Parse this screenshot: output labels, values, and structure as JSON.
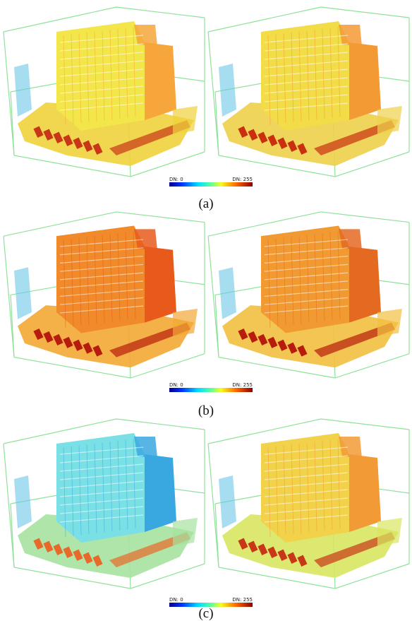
{
  "panels": [
    {
      "label": "(a)",
      "colorbar": {
        "min_label": "DN: 0",
        "max_label": "DN: 255"
      }
    },
    {
      "label": "(b)",
      "colorbar": {
        "min_label": "DN: 0",
        "max_label": "DN: 255"
      }
    },
    {
      "label": "(c)",
      "colorbar": {
        "min_label": "DN: 0",
        "max_label": "DN: 255"
      }
    }
  ]
}
